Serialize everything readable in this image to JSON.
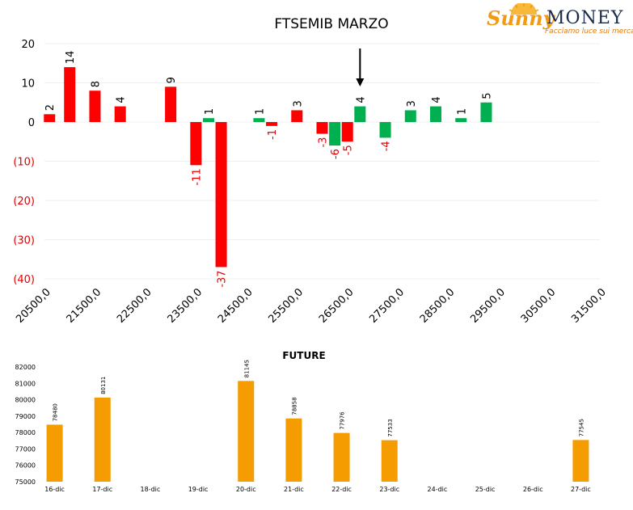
{
  "header": {
    "title": "FTSEMIB MARZO",
    "logo_sunny": "Sunny",
    "logo_money": "MONEY",
    "logo_tagline": "Facciamo luce sui mercati"
  },
  "chart_data": [
    {
      "type": "bar",
      "title": "FTSEMIB MARZO",
      "xlabel": "",
      "ylabel": "",
      "x_ticks": [
        "20500,0",
        "21500,0",
        "22500,0",
        "23500,0",
        "24500,0",
        "25500,0",
        "26500,0",
        "27500,0",
        "28500,0",
        "29500,0",
        "30500,0",
        "31500,0"
      ],
      "y_ticks": [
        "20",
        "10",
        "0",
        "(10)",
        "(20)",
        "(30)",
        "(40)"
      ],
      "ylim": [
        -40,
        20
      ],
      "xlim": [
        20500,
        31500
      ],
      "grid": true,
      "legend": "none",
      "series": [
        {
          "color": "#ff0000",
          "points": [
            {
              "x": 20600,
              "y": 2,
              "label": "2"
            },
            {
              "x": 21000,
              "y": 14,
              "label": "14"
            },
            {
              "x": 21500,
              "y": 8,
              "label": "8"
            },
            {
              "x": 22000,
              "y": 4,
              "label": "4"
            },
            {
              "x": 23000,
              "y": 9,
              "label": "9"
            },
            {
              "x": 23500,
              "y": -11,
              "label": "-11"
            },
            {
              "x": 24000,
              "y": -37,
              "label": "-37"
            },
            {
              "x": 25000,
              "y": -1,
              "label": "-1"
            },
            {
              "x": 25500,
              "y": 3,
              "label": "3"
            },
            {
              "x": 26000,
              "y": -3,
              "label": "-3"
            },
            {
              "x": 26500,
              "y": -5,
              "label": "-5"
            }
          ]
        },
        {
          "color": "#00b050",
          "points": [
            {
              "x": 23750,
              "y": 1,
              "label": "1"
            },
            {
              "x": 24750,
              "y": 1,
              "label": "1"
            },
            {
              "x": 26250,
              "y": -6,
              "label": "-6"
            },
            {
              "x": 26750,
              "y": 4,
              "label": "4"
            },
            {
              "x": 27250,
              "y": -4,
              "label": "-4"
            },
            {
              "x": 27750,
              "y": 3,
              "label": "3"
            },
            {
              "x": 28250,
              "y": 4,
              "label": "4"
            },
            {
              "x": 28750,
              "y": 1,
              "label": "1"
            },
            {
              "x": 29250,
              "y": 5,
              "label": "5"
            }
          ]
        }
      ],
      "annotations": [
        {
          "type": "arrow-down",
          "x": 26750
        }
      ]
    },
    {
      "type": "bar",
      "title": "FUTURE",
      "xlabel": "",
      "ylabel": "",
      "categories": [
        "16-dic",
        "17-dic",
        "18-dic",
        "19-dic",
        "20-dic",
        "21-dic",
        "22-dic",
        "23-dic",
        "24-dic",
        "25-dic",
        "26-dic",
        "27-dic"
      ],
      "values": [
        78480,
        80131,
        null,
        null,
        81145,
        78858,
        77976,
        77533,
        null,
        null,
        null,
        77545
      ],
      "value_labels": [
        "78480",
        "80131",
        "",
        "",
        "81145",
        "78858",
        "77976",
        "77533",
        "",
        "",
        "",
        "77545"
      ],
      "y_ticks": [
        "82000",
        "81000",
        "80000",
        "79000",
        "78000",
        "77000",
        "76000",
        "75000"
      ],
      "ylim": [
        75000,
        82000
      ],
      "color": "#f59c00",
      "grid": false,
      "legend": "none"
    }
  ]
}
